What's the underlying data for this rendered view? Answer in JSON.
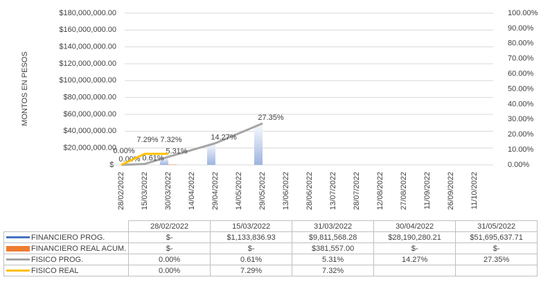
{
  "chart_data": {
    "type": "combo",
    "y_label": "MONTOS EN PESOS",
    "categories": [
      "28/02/2022",
      "15/03/2022",
      "30/03/2022",
      "14/04/2022",
      "29/04/2022",
      "14/05/2022",
      "29/05/2022",
      "13/06/2022",
      "28/06/2022",
      "13/07/2022",
      "28/07/2022",
      "12/08/2022",
      "27/08/2022",
      "11/09/2022",
      "26/09/2022",
      "11/10/2022"
    ],
    "ylim": [
      0,
      180000000
    ],
    "yticks": [
      {
        "value": 0,
        "label": "$-"
      },
      {
        "value": 20000000,
        "label": "$20,000,000.00"
      },
      {
        "value": 40000000,
        "label": "$40,000,000.00"
      },
      {
        "value": 60000000,
        "label": "$60,000,000.00"
      },
      {
        "value": 80000000,
        "label": "$80,000,000.00"
      },
      {
        "value": 100000000,
        "label": "$100,000,000.00"
      },
      {
        "value": 120000000,
        "label": "$120,000,000.00"
      },
      {
        "value": 140000000,
        "label": "$140,000,000.00"
      },
      {
        "value": 160000000,
        "label": "$160,000,000.00"
      },
      {
        "value": 180000000,
        "label": "$180,000,000.00"
      }
    ],
    "y2lim": [
      0,
      100
    ],
    "y2ticks": [
      {
        "value": 0,
        "label": "0.00%"
      },
      {
        "value": 10,
        "label": "10.00%"
      },
      {
        "value": 20,
        "label": "20.00%"
      },
      {
        "value": 30,
        "label": "30.00%"
      },
      {
        "value": 40,
        "label": "40.00%"
      },
      {
        "value": 50,
        "label": "50.00%"
      },
      {
        "value": 60,
        "label": "60.00%"
      },
      {
        "value": 70,
        "label": "70.00%"
      },
      {
        "value": 80,
        "label": "80.00%"
      },
      {
        "value": 90,
        "label": "90.00%"
      },
      {
        "value": 100,
        "label": "100.00%"
      }
    ],
    "grid": true,
    "series": [
      {
        "name": "FINANCIERO PROG.",
        "kind": "bar",
        "color": "#4472c4",
        "x": [
          "28/02/2022",
          "15/03/2022",
          "30/03/2022",
          "29/04/2022",
          "29/05/2022"
        ],
        "values": [
          0,
          1133836.93,
          9811568.28,
          28190280.21,
          51695637.71
        ]
      },
      {
        "name": "FINANCIERO REAL ACUM.",
        "kind": "bar",
        "color": "#ed7d31",
        "x": [
          "28/02/2022",
          "15/03/2022",
          "30/03/2022",
          "29/04/2022",
          "29/05/2022"
        ],
        "values": [
          0,
          0,
          381557.0,
          0,
          0
        ]
      },
      {
        "name": "FISICO PROG.",
        "kind": "line",
        "axis": "y2",
        "color": "#a5a5a5",
        "x": [
          "28/02/2022",
          "15/03/2022",
          "30/03/2022",
          "29/04/2022",
          "29/05/2022"
        ],
        "values": [
          0,
          0.61,
          5.31,
          14.27,
          27.35
        ],
        "value_labels": [
          "0.00%",
          "0.61%",
          "5.31%",
          "14.27%",
          "27.35%"
        ]
      },
      {
        "name": "FISICO REAL",
        "kind": "line",
        "axis": "y2",
        "color": "#ffc000",
        "x": [
          "28/02/2022",
          "15/03/2022",
          "30/03/2022"
        ],
        "values": [
          0,
          7.29,
          7.32
        ],
        "value_labels": [
          "0.00%",
          "7.29%",
          "7.32%"
        ]
      }
    ],
    "table": {
      "columns": [
        "28/02/2022",
        "15/03/2022",
        "31/03/2022",
        "30/04/2022",
        "31/05/2022"
      ],
      "rows": [
        [
          "$-",
          "$1,133,836.93",
          "$9,811,568.28",
          "$28,190,280.21",
          "$51,695,637.71"
        ],
        [
          "$-",
          "$-",
          "$381,557.00",
          "$-",
          "$-"
        ],
        [
          "0.00%",
          "0.61%",
          "5.31%",
          "14.27%",
          "27.35%"
        ],
        [
          "0.00%",
          "7.29%",
          "7.32%",
          "",
          ""
        ]
      ]
    }
  }
}
